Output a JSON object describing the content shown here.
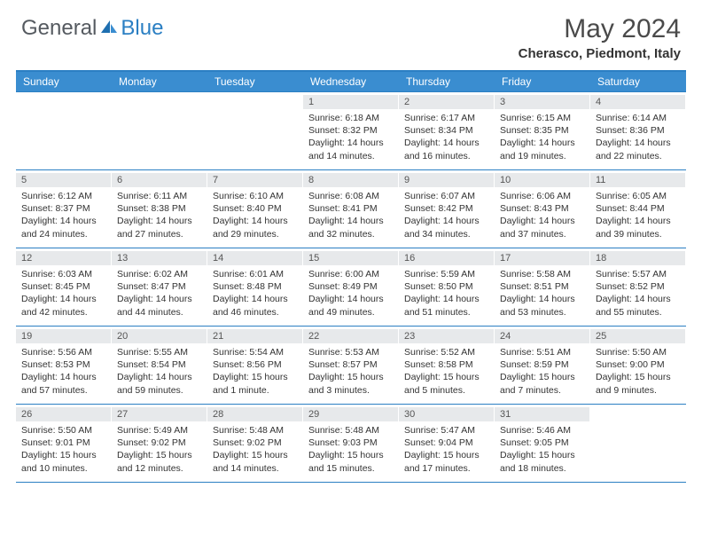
{
  "brand": {
    "word1": "General",
    "word2": "Blue"
  },
  "title": "May 2024",
  "location": "Cherasco, Piedmont, Italy",
  "colors": {
    "header_bg": "#3a8dd0",
    "rule": "#2b7fc3",
    "daynum_bg": "#e7e9eb",
    "text": "#333333",
    "logo_gray": "#555a60",
    "logo_blue": "#2b7fc3"
  },
  "day_headers": [
    "Sunday",
    "Monday",
    "Tuesday",
    "Wednesday",
    "Thursday",
    "Friday",
    "Saturday"
  ],
  "weeks": [
    [
      null,
      null,
      null,
      {
        "n": "1",
        "sr": "6:18 AM",
        "ss": "8:32 PM",
        "dl": "14 hours and 14 minutes."
      },
      {
        "n": "2",
        "sr": "6:17 AM",
        "ss": "8:34 PM",
        "dl": "14 hours and 16 minutes."
      },
      {
        "n": "3",
        "sr": "6:15 AM",
        "ss": "8:35 PM",
        "dl": "14 hours and 19 minutes."
      },
      {
        "n": "4",
        "sr": "6:14 AM",
        "ss": "8:36 PM",
        "dl": "14 hours and 22 minutes."
      }
    ],
    [
      {
        "n": "5",
        "sr": "6:12 AM",
        "ss": "8:37 PM",
        "dl": "14 hours and 24 minutes."
      },
      {
        "n": "6",
        "sr": "6:11 AM",
        "ss": "8:38 PM",
        "dl": "14 hours and 27 minutes."
      },
      {
        "n": "7",
        "sr": "6:10 AM",
        "ss": "8:40 PM",
        "dl": "14 hours and 29 minutes."
      },
      {
        "n": "8",
        "sr": "6:08 AM",
        "ss": "8:41 PM",
        "dl": "14 hours and 32 minutes."
      },
      {
        "n": "9",
        "sr": "6:07 AM",
        "ss": "8:42 PM",
        "dl": "14 hours and 34 minutes."
      },
      {
        "n": "10",
        "sr": "6:06 AM",
        "ss": "8:43 PM",
        "dl": "14 hours and 37 minutes."
      },
      {
        "n": "11",
        "sr": "6:05 AM",
        "ss": "8:44 PM",
        "dl": "14 hours and 39 minutes."
      }
    ],
    [
      {
        "n": "12",
        "sr": "6:03 AM",
        "ss": "8:45 PM",
        "dl": "14 hours and 42 minutes."
      },
      {
        "n": "13",
        "sr": "6:02 AM",
        "ss": "8:47 PM",
        "dl": "14 hours and 44 minutes."
      },
      {
        "n": "14",
        "sr": "6:01 AM",
        "ss": "8:48 PM",
        "dl": "14 hours and 46 minutes."
      },
      {
        "n": "15",
        "sr": "6:00 AM",
        "ss": "8:49 PM",
        "dl": "14 hours and 49 minutes."
      },
      {
        "n": "16",
        "sr": "5:59 AM",
        "ss": "8:50 PM",
        "dl": "14 hours and 51 minutes."
      },
      {
        "n": "17",
        "sr": "5:58 AM",
        "ss": "8:51 PM",
        "dl": "14 hours and 53 minutes."
      },
      {
        "n": "18",
        "sr": "5:57 AM",
        "ss": "8:52 PM",
        "dl": "14 hours and 55 minutes."
      }
    ],
    [
      {
        "n": "19",
        "sr": "5:56 AM",
        "ss": "8:53 PM",
        "dl": "14 hours and 57 minutes."
      },
      {
        "n": "20",
        "sr": "5:55 AM",
        "ss": "8:54 PM",
        "dl": "14 hours and 59 minutes."
      },
      {
        "n": "21",
        "sr": "5:54 AM",
        "ss": "8:56 PM",
        "dl": "15 hours and 1 minute."
      },
      {
        "n": "22",
        "sr": "5:53 AM",
        "ss": "8:57 PM",
        "dl": "15 hours and 3 minutes."
      },
      {
        "n": "23",
        "sr": "5:52 AM",
        "ss": "8:58 PM",
        "dl": "15 hours and 5 minutes."
      },
      {
        "n": "24",
        "sr": "5:51 AM",
        "ss": "8:59 PM",
        "dl": "15 hours and 7 minutes."
      },
      {
        "n": "25",
        "sr": "5:50 AM",
        "ss": "9:00 PM",
        "dl": "15 hours and 9 minutes."
      }
    ],
    [
      {
        "n": "26",
        "sr": "5:50 AM",
        "ss": "9:01 PM",
        "dl": "15 hours and 10 minutes."
      },
      {
        "n": "27",
        "sr": "5:49 AM",
        "ss": "9:02 PM",
        "dl": "15 hours and 12 minutes."
      },
      {
        "n": "28",
        "sr": "5:48 AM",
        "ss": "9:02 PM",
        "dl": "15 hours and 14 minutes."
      },
      {
        "n": "29",
        "sr": "5:48 AM",
        "ss": "9:03 PM",
        "dl": "15 hours and 15 minutes."
      },
      {
        "n": "30",
        "sr": "5:47 AM",
        "ss": "9:04 PM",
        "dl": "15 hours and 17 minutes."
      },
      {
        "n": "31",
        "sr": "5:46 AM",
        "ss": "9:05 PM",
        "dl": "15 hours and 18 minutes."
      },
      null
    ]
  ],
  "labels": {
    "sunrise": "Sunrise:",
    "sunset": "Sunset:",
    "daylight": "Daylight:"
  }
}
